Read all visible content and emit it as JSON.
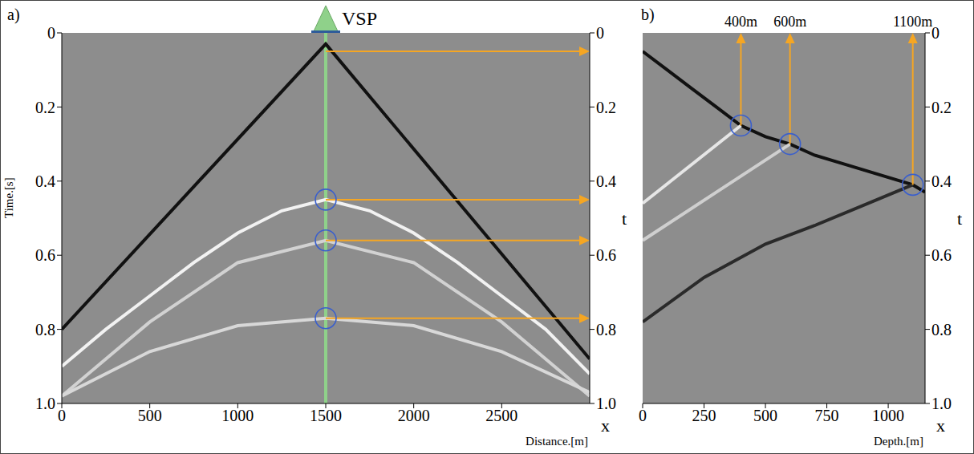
{
  "chart_data": [
    {
      "type": "line",
      "panel_label": "a)",
      "x_label": "Distance.[m]",
      "y_label": "Time.[s]",
      "y2_label": "t",
      "x_symbol": "x",
      "grid": false,
      "xlim": [
        0,
        3000
      ],
      "xticks": [
        0,
        500,
        1000,
        1500,
        2000,
        2500
      ],
      "ylim": [
        0,
        1
      ],
      "yticks": [
        0,
        0.2,
        0.4,
        0.6,
        0.8,
        {
          "value": 1,
          "label": "1.0"
        }
      ],
      "y2lim": [
        0,
        1
      ],
      "y2ticks": [
        0,
        0.2,
        0.4,
        0.6,
        0.8,
        {
          "value": 1,
          "label": "1.0"
        }
      ],
      "vsp": {
        "label": "VSP",
        "x": 1500,
        "color": "#8fd18a"
      },
      "series": [
        {
          "type": "line",
          "color": "#111111",
          "x": [
            0,
            1500,
            3000
          ],
          "values": [
            0.8,
            0.03,
            0.88
          ]
        },
        {
          "type": "line",
          "color": "#f2f2f2",
          "x": [
            0,
            250,
            500,
            750,
            1000,
            1250,
            1500,
            1750,
            2000,
            2250,
            2500,
            2750,
            3000
          ],
          "values": [
            0.9,
            0.8,
            0.71,
            0.62,
            0.54,
            0.48,
            0.45,
            0.48,
            0.54,
            0.62,
            0.71,
            0.8,
            0.92
          ]
        },
        {
          "type": "line",
          "color": "#d2d2d2",
          "x": [
            0,
            500,
            1000,
            1500,
            2000,
            2500,
            3000
          ],
          "values": [
            0.98,
            0.78,
            0.62,
            0.56,
            0.62,
            0.78,
            0.98
          ]
        },
        {
          "type": "line",
          "color": "#d8d8d8",
          "x": [
            0,
            500,
            1000,
            1500,
            2000,
            2500,
            3000
          ],
          "values": [
            0.98,
            0.86,
            0.79,
            0.77,
            0.79,
            0.86,
            0.97
          ]
        },
        {
          "type": "scatter",
          "marker": "circle",
          "color": "#3a5fcd",
          "x": [
            1500,
            1500,
            1500
          ],
          "values": [
            0.45,
            0.56,
            0.77
          ]
        }
      ],
      "arrows": {
        "color": "#f5a623",
        "items": [
          {
            "from": [
              1500,
              0.05
            ],
            "to": [
              3000,
              0.05
            ]
          },
          {
            "from": [
              1500,
              0.45
            ],
            "to": [
              3000,
              0.45
            ]
          },
          {
            "from": [
              1500,
              0.56
            ],
            "to": [
              3000,
              0.56
            ]
          },
          {
            "from": [
              1500,
              0.77
            ],
            "to": [
              3000,
              0.77
            ]
          }
        ]
      }
    },
    {
      "type": "line",
      "panel_label": "b)",
      "x_label": "Depth.[m]",
      "y_label": "t",
      "x_symbol": "x",
      "grid": false,
      "xlim": [
        0,
        1150
      ],
      "xticks": [
        0,
        250,
        500,
        750,
        1000
      ],
      "ylim": [
        0,
        1
      ],
      "yticks": [
        0,
        0.2,
        0.4,
        0.6,
        0.8,
        {
          "value": 1,
          "label": "1.0"
        }
      ],
      "series": [
        {
          "type": "line",
          "color": "#111111",
          "x": [
            0,
            100,
            200,
            300,
            400,
            500,
            600,
            700,
            800,
            900,
            1000,
            1100,
            1150
          ],
          "values": [
            0.05,
            0.1,
            0.15,
            0.2,
            0.25,
            0.28,
            0.3,
            0.33,
            0.35,
            0.37,
            0.39,
            0.41,
            0.43
          ]
        },
        {
          "type": "line",
          "color": "#e6e6e6",
          "x": [
            400,
            0
          ],
          "values": [
            0.25,
            0.46
          ]
        },
        {
          "type": "line",
          "color": "#cfcfcf",
          "x": [
            600,
            300,
            0
          ],
          "values": [
            0.3,
            0.43,
            0.56
          ]
        },
        {
          "type": "line",
          "color": "#2a2a2a",
          "x": [
            1100,
            700,
            500,
            250,
            0
          ],
          "values": [
            0.41,
            0.52,
            0.57,
            0.66,
            0.78
          ]
        },
        {
          "type": "scatter",
          "marker": "circle",
          "color": "#3a5fcd",
          "x": [
            400,
            600,
            1100
          ],
          "values": [
            0.25,
            0.3,
            0.41
          ]
        }
      ],
      "arrows": {
        "color": "#f5a623",
        "items": [
          {
            "from": [
              400,
              0.25
            ],
            "to": [
              400,
              0
            ],
            "label": "400m"
          },
          {
            "from": [
              600,
              0.3
            ],
            "to": [
              600,
              0
            ],
            "label": "600m"
          },
          {
            "from": [
              1100,
              0.41
            ],
            "to": [
              1100,
              0
            ],
            "label": "1100m"
          }
        ]
      }
    }
  ]
}
